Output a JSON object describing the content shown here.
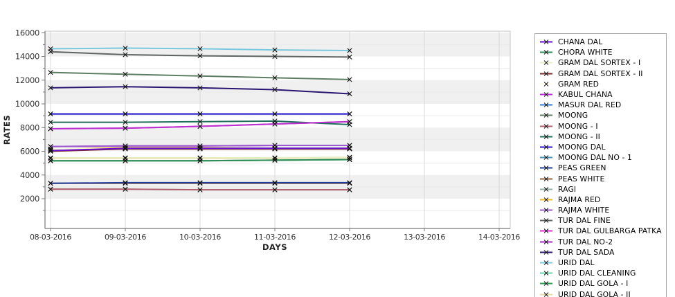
{
  "chart_data": {
    "type": "line",
    "title": "",
    "xlabel": "DAYS",
    "ylabel": "RATES",
    "x_tick_labels": [
      "08-03-2016",
      "09-03-2016",
      "10-03-2016",
      "11-03-2016",
      "12-03-2016",
      "13-03-2016",
      "14-03-2016"
    ],
    "y_ticks": [
      2000,
      4000,
      6000,
      8000,
      10000,
      12000,
      14000,
      16000
    ],
    "y_minor_ticks": [
      1000,
      3000,
      5000,
      7000,
      9000,
      11000,
      13000,
      15000
    ],
    "ylim": [
      0,
      16000
    ],
    "data_dates": [
      "08-03-2016",
      "09-03-2016",
      "10-03-2016",
      "11-03-2016",
      "12-03-2016"
    ],
    "marker": "x",
    "grid": "alternating horizontal bands, vertical gridlines at each date",
    "legend_position": "right",
    "series": [
      {
        "name": "CHANA DAL",
        "color": "#6a0fc8",
        "values": [
          6050,
          6250,
          6250,
          6250,
          6250
        ]
      },
      {
        "name": "CHORA WHITE",
        "color": "#2e8b57",
        "values": [
          5200,
          5200,
          5200,
          5250,
          5300
        ]
      },
      {
        "name": "GRAM DAL SORTEX - I",
        "color": "#e7eec6",
        "values": [
          5450,
          5450,
          5450,
          5450,
          5500
        ]
      },
      {
        "name": "GRAM DAL SORTEX - II",
        "color": "#7b2a2a",
        "values": [
          6000,
          6200,
          6200,
          6200,
          6200
        ]
      },
      {
        "name": "GRAM RED",
        "color": "#fdfbe8",
        "values": [
          6200,
          6200,
          6200,
          6200,
          6200
        ]
      },
      {
        "name": "KABUL CHANA",
        "color": "#bb2fd0",
        "values": [
          7900,
          7950,
          8100,
          8300,
          8500
        ]
      },
      {
        "name": "MASUR DAL RED",
        "color": "#2a7fd4",
        "values": [
          6050,
          6250,
          6250,
          6250,
          6250
        ]
      },
      {
        "name": "MOONG",
        "color": "#5c7d62",
        "values": [
          12650,
          12500,
          12350,
          12200,
          12050
        ]
      },
      {
        "name": "MOONG - I",
        "color": "#b05c6c",
        "values": [
          2800,
          2800,
          2750,
          2750,
          2750
        ]
      },
      {
        "name": "MOONG - II",
        "color": "#1f6f5a",
        "values": [
          8450,
          8450,
          8500,
          8550,
          8250
        ]
      },
      {
        "name": "MOONG DAL",
        "color": "#2a15d0",
        "values": [
          9150,
          9150,
          9150,
          9150,
          9150
        ]
      },
      {
        "name": "MOONG DAL NO - 1",
        "color": "#4a93b8",
        "values": [
          9150,
          9150,
          9150,
          9150,
          9150
        ]
      },
      {
        "name": "PEAS GREEN",
        "color": "#1f3f9e",
        "values": [
          3300,
          3350,
          3350,
          3350,
          3350
        ]
      },
      {
        "name": "PEAS WHITE",
        "color": "#96613c",
        "values": [
          3300,
          3300,
          3300,
          3300,
          3300
        ]
      },
      {
        "name": "RAGI",
        "color": "#8fb0a5",
        "values": [
          2800,
          2800,
          2750,
          2750,
          2750
        ]
      },
      {
        "name": "RAJMA RED",
        "color": "#f0b81f",
        "values": [
          6150,
          6300,
          6300,
          6250,
          6250
        ]
      },
      {
        "name": "RAJMA WHITE",
        "color": "#9b59d0",
        "values": [
          6400,
          6450,
          6450,
          6500,
          6500
        ]
      },
      {
        "name": "TUR DAL FINE",
        "color": "#5f6560",
        "values": [
          14400,
          14150,
          14050,
          14000,
          13950
        ]
      },
      {
        "name": "TUR DAL GULBARGA PATKA",
        "color": "#dd2fd0",
        "values": [
          7900,
          7950,
          8100,
          8300,
          8500
        ]
      },
      {
        "name": "TUR DAL NO-2",
        "color": "#a428c4",
        "values": [
          6400,
          6450,
          6450,
          6500,
          6500
        ]
      },
      {
        "name": "TUR DAL SADA",
        "color": "#2a1570",
        "values": [
          11350,
          11450,
          11350,
          11200,
          10850
        ]
      },
      {
        "name": "URID DAL",
        "color": "#79c8dd",
        "values": [
          14650,
          14700,
          14650,
          14550,
          14500
        ]
      },
      {
        "name": "URID DAL CLEANING",
        "color": "#66d9a8",
        "values": [
          5200,
          5200,
          5200,
          5250,
          5300
        ]
      },
      {
        "name": "URID DAL GOLA - I",
        "color": "#2ea14e",
        "values": [
          5200,
          5200,
          5200,
          5250,
          5300
        ]
      },
      {
        "name": "URID DAL GOLA - II",
        "color": "#ead9a4",
        "values": [
          5400,
          5400,
          5400,
          5400,
          5450
        ]
      }
    ]
  },
  "colors": {
    "band_gray": "#f0f0f0",
    "band_white": "#ffffff",
    "minor_hgrid": "#e9e9e9",
    "vgrid": "#d8d8d8",
    "axis_line": "#777777",
    "frame": "#c6c6c6",
    "tick_text": "#333333",
    "axis_title_text": "#222222",
    "marker": "#141414",
    "legend_border": "#a8a8a8"
  }
}
